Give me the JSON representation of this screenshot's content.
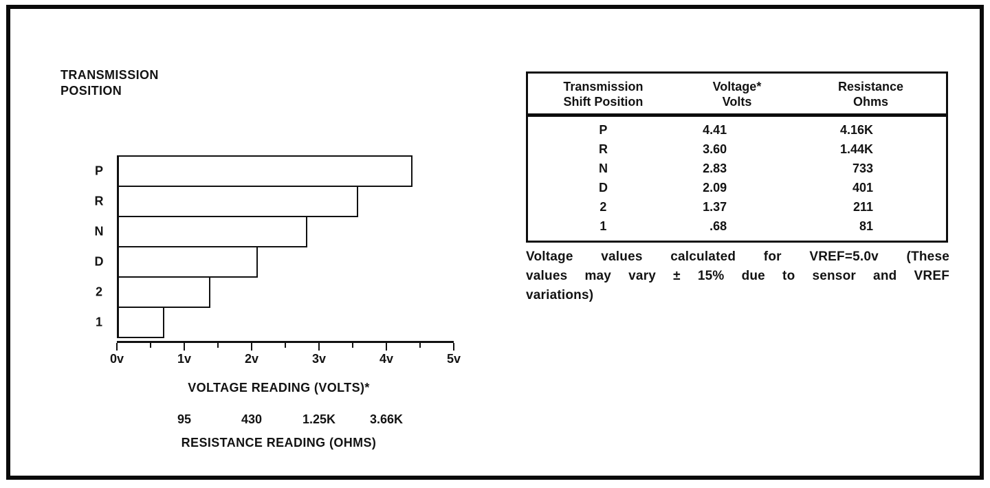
{
  "chart_data": {
    "type": "bar",
    "orientation": "horizontal",
    "title": "TRANSMISSION POSITION",
    "title_lines": [
      "TRANSMISSION",
      "POSITION"
    ],
    "categories": [
      "P",
      "R",
      "N",
      "D",
      "2",
      "1"
    ],
    "values": [
      4.41,
      3.6,
      2.83,
      2.09,
      1.37,
      0.68
    ],
    "xlim": [
      0,
      5
    ],
    "x_tick_labels": [
      "0v",
      "1v",
      "2v",
      "3v",
      "4v",
      "5v"
    ],
    "xlabel": "VOLTAGE READING (VOLTS)*",
    "grid": false,
    "resistance_axis": {
      "tick_labels": [
        "95",
        "430",
        "1.25K",
        "3.66K"
      ],
      "tick_positions_volts": [
        1,
        2,
        3,
        4
      ],
      "label": "RESISTANCE READING (OHMS)"
    }
  },
  "table": {
    "col_headers": [
      [
        "Transmission",
        "Shift Position"
      ],
      [
        "Voltage*",
        "Volts"
      ],
      [
        "Resistance",
        "Ohms"
      ]
    ],
    "rows": [
      {
        "position": "P",
        "voltage": "4.41",
        "resistance": "4.16K"
      },
      {
        "position": "R",
        "voltage": "3.60",
        "resistance": "1.44K"
      },
      {
        "position": "N",
        "voltage": "2.83",
        "resistance": "733"
      },
      {
        "position": "D",
        "voltage": "2.09",
        "resistance": "401"
      },
      {
        "position": "2",
        "voltage": "1.37",
        "resistance": "211"
      },
      {
        "position": "1",
        "voltage": ".68",
        "resistance": "81"
      }
    ]
  },
  "note_lines": [
    "Voltage values calculated for VREF=5.0v (These",
    "values may vary ± 15% due to sensor and VREF",
    "variations)"
  ],
  "colors": {
    "ink": "#111111",
    "paper": "#ffffff"
  }
}
